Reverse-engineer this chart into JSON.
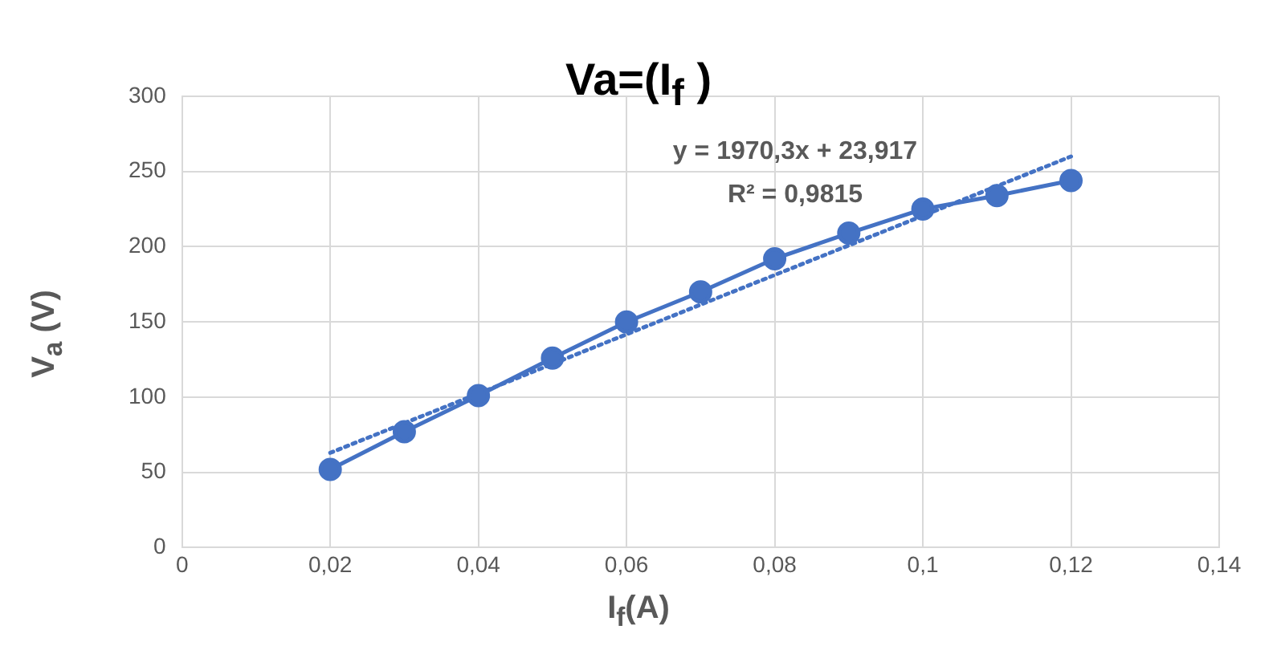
{
  "chart_data": {
    "type": "line",
    "title": "Va=(I$_{f}$ )",
    "xlabel": "I$_{f}$(A)",
    "ylabel": "V$_{a}$ (V)",
    "annotations": [
      "y = 1970,3x + 23,917",
      "R² = 0,9815"
    ],
    "x": [
      0.02,
      0.03,
      0.04,
      0.05,
      0.06,
      0.07,
      0.08,
      0.09,
      0.1,
      0.11,
      0.12
    ],
    "series": [
      {
        "color": "#4472c4",
        "values": [
          52,
          77,
          101,
          126,
          150,
          170,
          192,
          209,
          225,
          234,
          244
        ],
        "marker": "circle",
        "line_style": "solid"
      },
      {
        "color": "#4472c4",
        "x": [
          0.02,
          0.12
        ],
        "values": [
          63,
          260
        ],
        "marker": "none",
        "line_style": "dotted"
      }
    ],
    "xlim": [
      0,
      0.14
    ],
    "xticks": [
      0,
      {
        "value": 0.02,
        "label": "0,02"
      },
      {
        "value": 0.04,
        "label": "0,04"
      },
      {
        "value": 0.06,
        "label": "0,06"
      },
      {
        "value": 0.08,
        "label": "0,08"
      },
      {
        "value": 0.1,
        "label": "0,1"
      },
      {
        "value": 0.12,
        "label": "0,12"
      },
      {
        "value": 0.14,
        "label": "0,14"
      }
    ],
    "ylim": [
      0,
      300
    ],
    "yticks": [
      0,
      50,
      100,
      150,
      200,
      250,
      300
    ],
    "grid": true,
    "legend": false
  }
}
